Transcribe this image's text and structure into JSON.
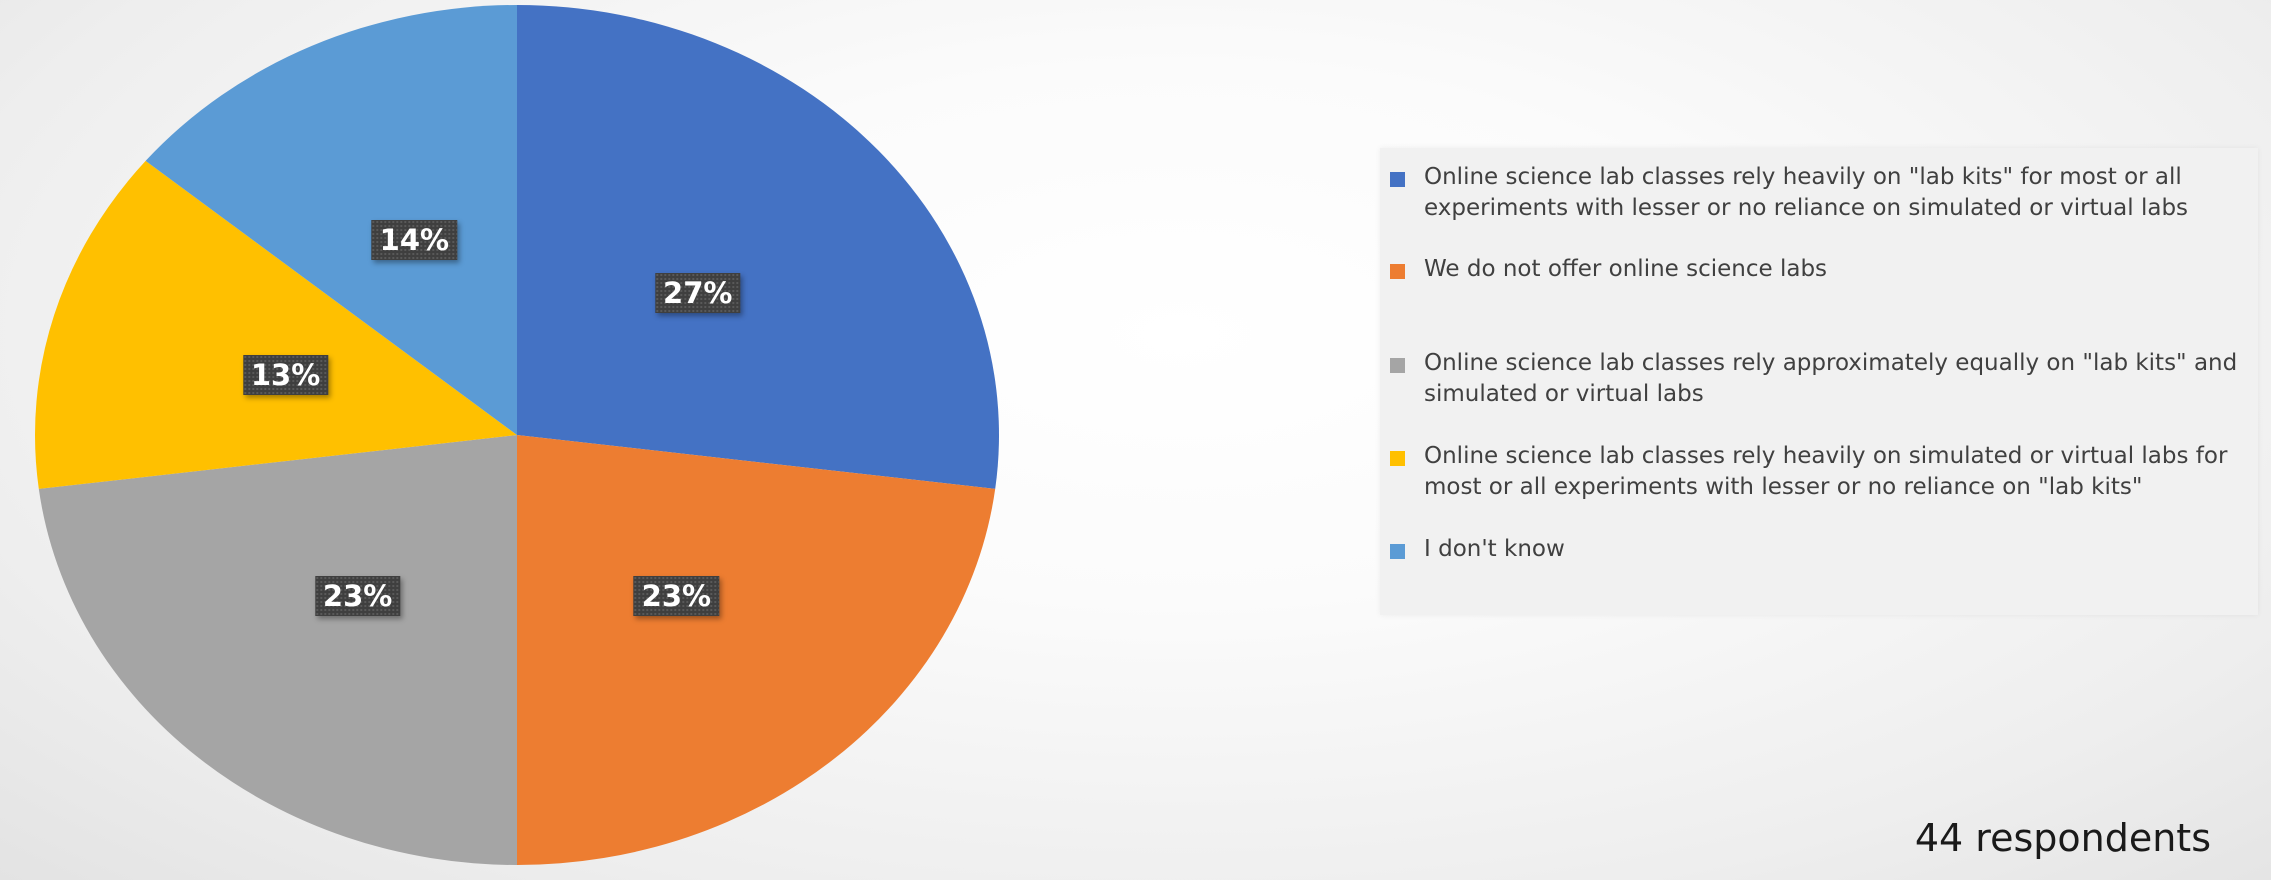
{
  "chart_data": {
    "type": "pie",
    "series": [
      {
        "label": "Online science lab classes rely heavily on \"lab kits\" for most or all experiments with lesser or no reliance on simulated or virtual labs",
        "value": 27,
        "display": "27%",
        "color": "#4472C4"
      },
      {
        "label": "We do not offer online science labs",
        "value": 23,
        "display": "23%",
        "color": "#ED7D31"
      },
      {
        "label": "Online science lab classes rely approximately equally on \"lab kits\" and simulated or virtual labs",
        "value": 23,
        "display": "23%",
        "color": "#A5A5A5"
      },
      {
        "label": "Online science lab classes rely heavily on simulated or virtual labs for most or all experiments with lesser or no reliance on \"lab kits\"",
        "value": 13,
        "display": "13%",
        "color": "#FFC000"
      },
      {
        "label": "I don't know",
        "value": 14,
        "display": "14%",
        "color": "#5B9BD5"
      }
    ],
    "legend_position": "right",
    "respondents_note": "44 respondents"
  }
}
